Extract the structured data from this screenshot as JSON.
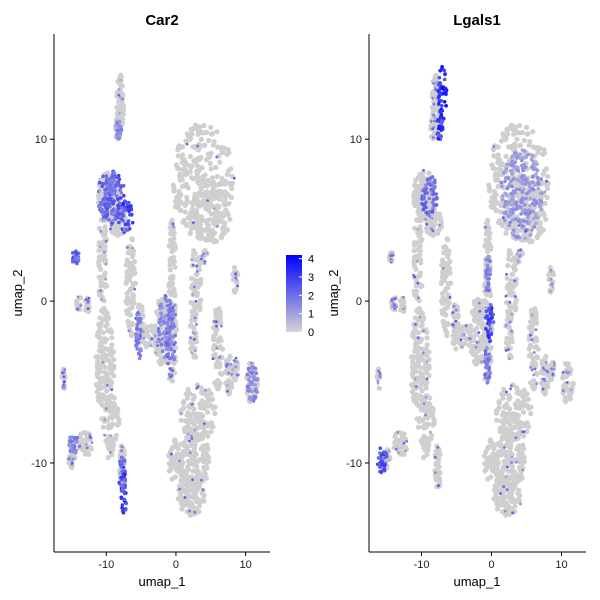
{
  "chart_data": [
    {
      "type": "scatter",
      "title": "Car2",
      "xlabel": "umap_1",
      "ylabel": "umap_2",
      "xticks": [
        -10,
        0,
        10
      ],
      "yticks": [
        -10,
        0,
        10
      ],
      "xlim": [
        -17.5,
        13.5
      ],
      "ylim": [
        -15.5,
        16.5
      ],
      "highlight": [
        {
          "x": -7.5,
          "y": -11.8,
          "w": 0.4,
          "h": 1.6,
          "level": 4.0
        },
        {
          "x": -7.7,
          "y": -10.7,
          "w": 0.5,
          "h": 1.2,
          "level": 3.2
        },
        {
          "x": -7.3,
          "y": 5.2,
          "w": 1.2,
          "h": 1.0,
          "level": 3.6
        },
        {
          "x": -8.8,
          "y": 6.3,
          "w": 1.6,
          "h": 1.6,
          "level": 3.0
        },
        {
          "x": -10.2,
          "y": 6.4,
          "w": 1.0,
          "h": 1.4,
          "level": 2.6
        },
        {
          "x": -9.0,
          "y": 7.3,
          "w": 0.8,
          "h": 0.8,
          "level": 2.4
        },
        {
          "x": -14.4,
          "y": 2.7,
          "w": 0.6,
          "h": 0.4,
          "level": 3.2
        },
        {
          "x": -5.4,
          "y": -2.2,
          "w": 0.5,
          "h": 1.5,
          "level": 2.4
        },
        {
          "x": -1.5,
          "y": -1.5,
          "w": 1.1,
          "h": 2.0,
          "level": 2.0
        },
        {
          "x": -0.7,
          "y": -2.3,
          "w": 0.6,
          "h": 2.5,
          "level": 2.2
        },
        {
          "x": -14.6,
          "y": -8.8,
          "w": 0.8,
          "h": 0.6,
          "level": 2.0
        },
        {
          "x": 11.0,
          "y": -5.0,
          "w": 0.8,
          "h": 1.3,
          "level": 1.9
        },
        {
          "x": -8.2,
          "y": 10.6,
          "w": 0.4,
          "h": 0.6,
          "level": 1.8
        }
      ]
    },
    {
      "type": "scatter",
      "title": "Lgals1",
      "xlabel": "umap_1",
      "ylabel": "umap_2",
      "xticks": [
        -10,
        0,
        10
      ],
      "yticks": [
        -10,
        0,
        10
      ],
      "xlim": [
        -17.5,
        13.5
      ],
      "ylim": [
        -15.5,
        16.5
      ],
      "highlight": [
        {
          "x": -7.0,
          "y": 12.6,
          "w": 0.6,
          "h": 2.0,
          "level": 4.2
        },
        {
          "x": -7.4,
          "y": 10.8,
          "w": 0.5,
          "h": 0.9,
          "level": 3.8
        },
        {
          "x": -15.6,
          "y": -9.8,
          "w": 0.7,
          "h": 0.9,
          "level": 3.5
        },
        {
          "x": -0.3,
          "y": -1.3,
          "w": 0.6,
          "h": 1.2,
          "level": 3.5
        },
        {
          "x": -8.9,
          "y": 6.5,
          "w": 1.2,
          "h": 1.3,
          "level": 2.6
        },
        {
          "x": 4.3,
          "y": 6.6,
          "w": 3.0,
          "h": 2.8,
          "level": 1.5
        },
        {
          "x": -0.6,
          "y": -4.0,
          "w": 0.4,
          "h": 1.2,
          "level": 2.2
        },
        {
          "x": -0.5,
          "y": 1.6,
          "w": 0.4,
          "h": 1.2,
          "level": 2.0
        }
      ]
    }
  ],
  "legend": {
    "title": "",
    "ticks": [
      0,
      1,
      2,
      3,
      4
    ],
    "low_color": "#d3d3d3",
    "high_color": "#0000ff",
    "range": [
      0,
      4.2
    ]
  }
}
